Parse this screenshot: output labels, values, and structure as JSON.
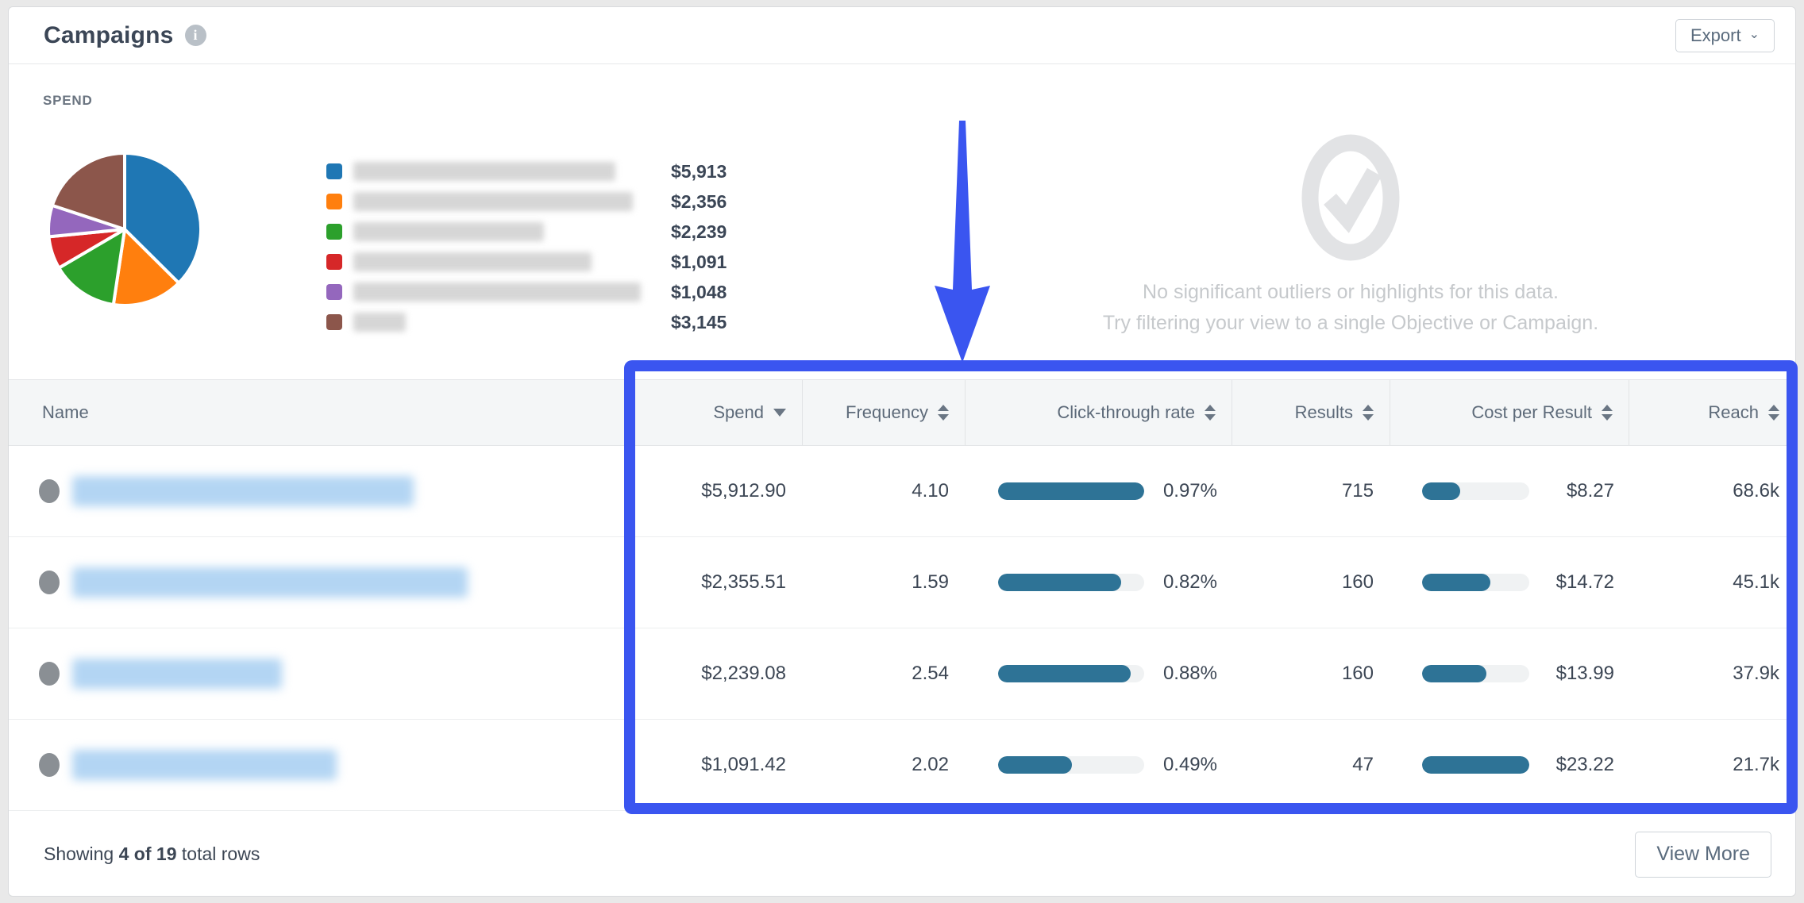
{
  "header": {
    "title": "Campaigns",
    "info_icon_glyph": "i",
    "export_label": "Export"
  },
  "chart_data": {
    "type": "pie",
    "title": "SPEND",
    "labels_redacted": true,
    "values": [
      5913,
      2356,
      2239,
      1091,
      1048,
      3145
    ],
    "display_values": [
      "$5,913",
      "$2,356",
      "$2,239",
      "$1,091",
      "$1,048",
      "$3,145"
    ],
    "colors": [
      "#1f77b4",
      "#ff7f0e",
      "#2ca02c",
      "#d62728",
      "#9467bd",
      "#8c564b"
    ],
    "start_angle_deg": 0,
    "direction": "clockwise",
    "legend_position": "right"
  },
  "empty_state": {
    "line1": "No significant outliers or highlights for this data.",
    "line2": "Try filtering your view to a single Objective or Campaign."
  },
  "table": {
    "columns": [
      {
        "label": "Name",
        "sort": "none"
      },
      {
        "label": "Spend",
        "sort": "desc"
      },
      {
        "label": "Frequency",
        "sort": "both"
      },
      {
        "label": "Click-through rate",
        "sort": "both"
      },
      {
        "label": "Results",
        "sort": "both"
      },
      {
        "label": "Cost per Result",
        "sort": "both"
      },
      {
        "label": "Reach",
        "sort": "both"
      }
    ],
    "ctr_max": 0.97,
    "cpr_max": 23.22,
    "bar_color": "#2e7396",
    "rows": [
      {
        "name_redacted": true,
        "spend": "$5,912.90",
        "frequency": "4.10",
        "ctr": "0.97%",
        "ctr_value": 0.97,
        "results": "715",
        "cost_per_result": "$8.27",
        "cpr_value": 8.27,
        "reach": "68.6k"
      },
      {
        "name_redacted": true,
        "spend": "$2,355.51",
        "frequency": "1.59",
        "ctr": "0.82%",
        "ctr_value": 0.82,
        "results": "160",
        "cost_per_result": "$14.72",
        "cpr_value": 14.72,
        "reach": "45.1k"
      },
      {
        "name_redacted": true,
        "spend": "$2,239.08",
        "frequency": "2.54",
        "ctr": "0.88%",
        "ctr_value": 0.88,
        "results": "160",
        "cost_per_result": "$13.99",
        "cpr_value": 13.99,
        "reach": "37.9k"
      },
      {
        "name_redacted": true,
        "spend": "$1,091.42",
        "frequency": "2.02",
        "ctr": "0.49%",
        "ctr_value": 0.49,
        "results": "47",
        "cost_per_result": "$23.22",
        "cpr_value": 23.22,
        "reach": "21.7k"
      }
    ]
  },
  "footer": {
    "showing_prefix": "Showing ",
    "showing_bold": "4 of 19",
    "showing_suffix": " total rows",
    "view_more_label": "View More"
  },
  "annotations": {
    "highlight_color": "#3a55f0",
    "arrow_direction": "down"
  }
}
